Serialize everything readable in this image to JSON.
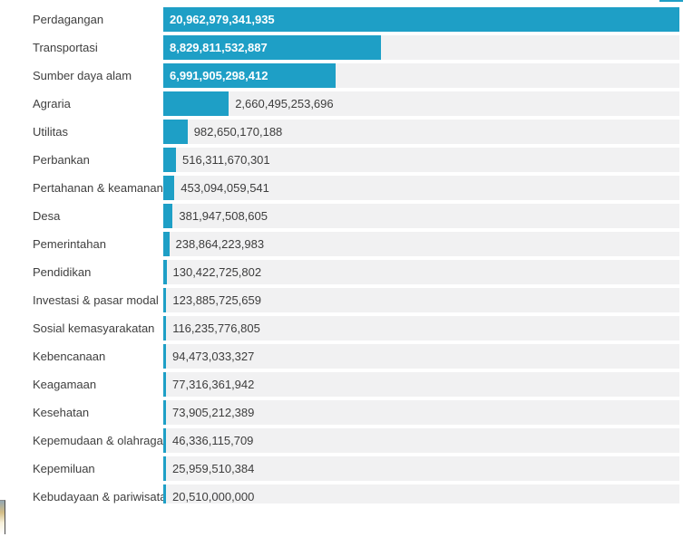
{
  "chart_data": {
    "type": "bar",
    "orientation": "horizontal",
    "title": "",
    "xlabel": "",
    "ylabel": "",
    "grid": false,
    "legend": false,
    "xlim": [
      0,
      20962979341935
    ],
    "categories": [
      "Perdagangan",
      "Transportasi",
      "Sumber daya alam",
      "Agraria",
      "Utilitas",
      "Perbankan",
      "Pertahanan & keamanan",
      "Desa",
      "Pemerintahan",
      "Pendidikan",
      "Investasi & pasar modal",
      "Sosial kemasyarakatan",
      "Kebencanaan",
      "Keagamaan",
      "Kesehatan",
      "Kepemudaan & olahraga",
      "Kepemiluan",
      "Kebudayaan & pariwisata"
    ],
    "values": [
      20962979341935,
      8829811532887,
      6991905298412,
      2660495253696,
      982650170188,
      516311670301,
      453094059541,
      381947508605,
      238864223983,
      130422725802,
      123885725659,
      116235776805,
      94473033327,
      77316361942,
      73905212389,
      46336115709,
      25959510384,
      20510000000
    ],
    "value_labels": [
      "20,962,979,341,935",
      "8,829,811,532,887",
      "6,991,905,298,412",
      "2,660,495,253,696",
      "982,650,170,188",
      "516,311,670,301",
      "453,094,059,541",
      "381,947,508,605",
      "238,864,223,983",
      "130,422,725,802",
      "123,885,725,659",
      "116,235,776,805",
      "94,473,033,327",
      "77,316,361,942",
      "73,905,212,389",
      "46,336,115,709",
      "25,959,510,384",
      "20,510,000,000"
    ],
    "value_label_position": "inside-if-fits",
    "colors": {
      "bar": "#1E9FC6",
      "track": "#F1F1F2",
      "value_inside": "#FFFFFF",
      "value_outside": "#3D3D3D",
      "category_text": "#3F3F3F",
      "background": "#FFFFFF"
    }
  },
  "artifacts": {
    "top_right_fragment_color": "#1E9FC6",
    "bottom_left_fragment": {
      "border_color": "#4A4A4A",
      "gradient": [
        "#93A7B2",
        "#D3BD85",
        "#F7F0DA",
        "#FFFFFF"
      ]
    }
  }
}
